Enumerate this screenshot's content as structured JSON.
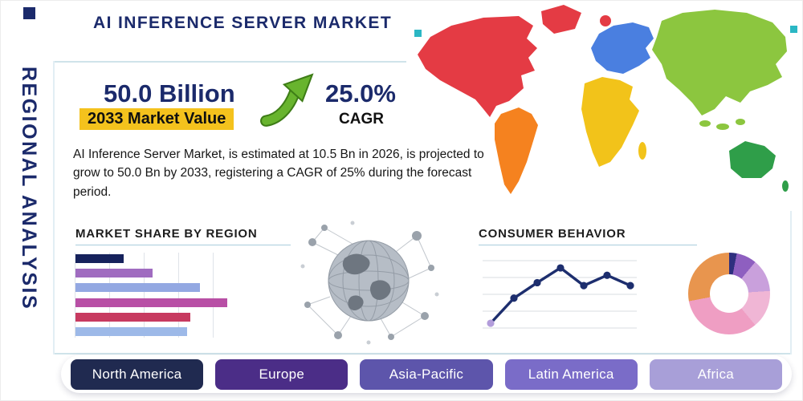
{
  "header": {
    "title": "AI INFERENCE SERVER MARKET"
  },
  "side_label": "REGIONAL ANALYSIS",
  "stats": {
    "market_value": "50.0 Billion",
    "market_value_caption": "2033 Market Value",
    "cagr_value": "25.0%",
    "cagr_caption": "CAGR",
    "highlight_color": "#f4c21d",
    "accent_navy": "#1b2a6b",
    "arrow_green": "#68b42e"
  },
  "summary": "AI Inference Server Market, is estimated at 10.5 Bn in 2026, is projected to grow to 50.0 Bn by 2033, registering a CAGR of 25% during the forecast period.",
  "sections": {
    "market_share_title": "MARKET SHARE BY REGION",
    "consumer_behavior_title": "CONSUMER BEHAVIOR"
  },
  "region_buttons": [
    {
      "label": "North America",
      "color": "#202a50"
    },
    {
      "label": "Europe",
      "color": "#4b2d87"
    },
    {
      "label": "Asia-Pacific",
      "color": "#5d55ab"
    },
    {
      "label": "Latin America",
      "color": "#7a6cc8"
    },
    {
      "label": "Africa",
      "color": "#a89fd8"
    }
  ],
  "map": {
    "colors": {
      "north_america": "#e43b44",
      "greenland": "#e43b44",
      "south_america": "#f5821f",
      "europe": "#4a7fe0",
      "africa": "#f2c31a",
      "asia": "#8cc63f",
      "islands": "#8cc63f",
      "australia": "#2f9e49",
      "accent_dot_red": "#e43b44",
      "accent_square_teal": "#2bb7c4"
    }
  },
  "chart_data": [
    {
      "type": "bar",
      "title": "MARKET SHARE BY REGION",
      "orientation": "horizontal",
      "values": [
        30,
        48,
        78,
        95,
        72,
        70
      ],
      "xlim": [
        0,
        100
      ],
      "unit": "relative-width-percent",
      "colors": [
        "#16225c",
        "#a06cc0",
        "#93a8e2",
        "#b84fa5",
        "#c73a60",
        "#9db9e8"
      ],
      "grid": "vertical"
    },
    {
      "type": "line",
      "title": "CONSUMER BEHAVIOR",
      "x": [
        1,
        2,
        3,
        4,
        5,
        6,
        7
      ],
      "values": [
        13,
        47,
        68,
        88,
        64,
        78,
        64
      ],
      "ylim": [
        0,
        100
      ],
      "color": "#1d2e6e",
      "first_marker_color": "#b39ddb",
      "grid": "horizontal"
    },
    {
      "type": "pie",
      "donut": true,
      "values": [
        3,
        8,
        13,
        15,
        33,
        28
      ],
      "colors": [
        "#2e2f7f",
        "#8e5fc0",
        "#c9a0dc",
        "#f0b6d5",
        "#ef9ec3",
        "#e8954e"
      ]
    }
  ]
}
